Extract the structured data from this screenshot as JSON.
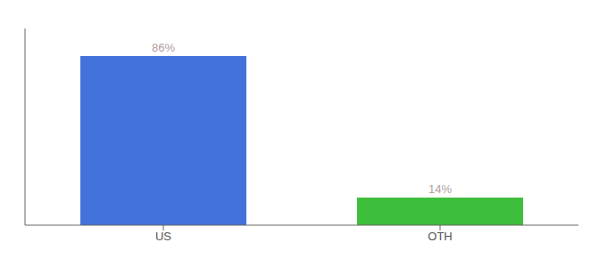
{
  "chart_data": {
    "type": "bar",
    "categories": [
      "US",
      "OTH"
    ],
    "values": [
      86,
      14
    ],
    "colors": [
      "#4472db",
      "#3dbf3d"
    ],
    "value_labels": [
      "86%",
      "14%"
    ],
    "data_labels": true,
    "ylim": [
      0,
      100
    ],
    "tick_labels": "x",
    "grid": false
  }
}
